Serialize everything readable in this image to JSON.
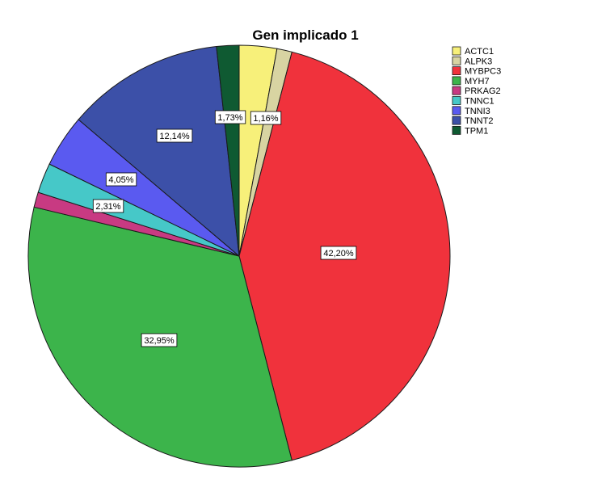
{
  "chart_data": {
    "type": "pie",
    "title": "Gen implicado 1",
    "slices": [
      {
        "name": "ACTC1",
        "value": 2.89,
        "label": "",
        "color": "#f7f07a"
      },
      {
        "name": "ALPK3",
        "value": 1.16,
        "label": "1,16%",
        "color": "#d8d4a2"
      },
      {
        "name": "MYBPC3",
        "value": 42.2,
        "label": "42,20%",
        "color": "#f0323c"
      },
      {
        "name": "MYH7",
        "value": 32.95,
        "label": "32,95%",
        "color": "#3cb44b"
      },
      {
        "name": "PRKAG2",
        "value": 1.16,
        "label": "",
        "color": "#c83a82"
      },
      {
        "name": "TNNC1",
        "value": 2.31,
        "label": "2,31%",
        "color": "#46c8c8"
      },
      {
        "name": "TNNI3",
        "value": 4.05,
        "label": "4,05%",
        "color": "#5a5af0"
      },
      {
        "name": "TNNT2",
        "value": 12.14,
        "label": "12,14%",
        "color": "#3c50a8"
      },
      {
        "name": "TPM1",
        "value": 1.73,
        "label": "1,73%",
        "color": "#0f5a32"
      }
    ],
    "legend_position": "top-right",
    "start_angle_deg": 0,
    "direction": "clockwise"
  }
}
